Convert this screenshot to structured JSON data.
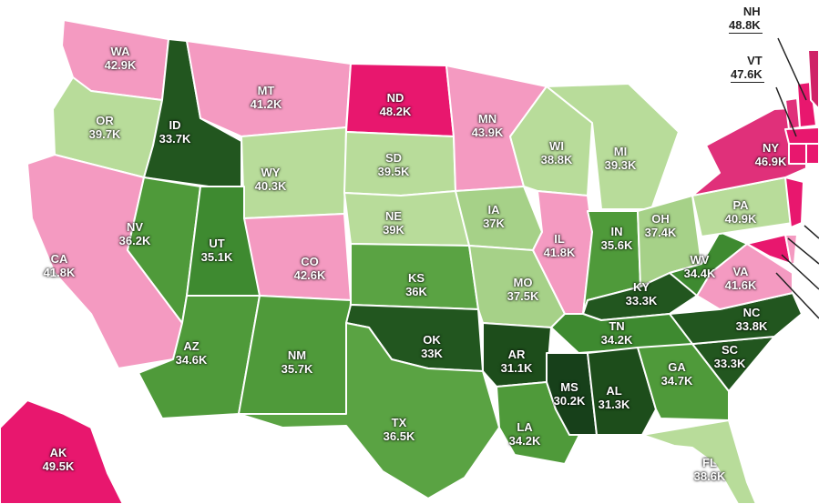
{
  "states": [
    {
      "code": "WA",
      "value": "42.9K",
      "color": "#f49ac1"
    },
    {
      "code": "OR",
      "value": "39.7K",
      "color": "#b8dc9a"
    },
    {
      "code": "CA",
      "value": "41.8K",
      "color": "#f49ac1"
    },
    {
      "code": "ID",
      "value": "33.7K",
      "color": "#22561f"
    },
    {
      "code": "NV",
      "value": "36.2K",
      "color": "#4f9a3a"
    },
    {
      "code": "MT",
      "value": "41.2K",
      "color": "#f49ac1"
    },
    {
      "code": "WY",
      "value": "40.3K",
      "color": "#b8dc9a"
    },
    {
      "code": "UT",
      "value": "35.1K",
      "color": "#3e8a30"
    },
    {
      "code": "AZ",
      "value": "34.6K",
      "color": "#4f9a3a"
    },
    {
      "code": "CO",
      "value": "42.6K",
      "color": "#f49ac1"
    },
    {
      "code": "NM",
      "value": "35.7K",
      "color": "#4f9a3a"
    },
    {
      "code": "ND",
      "value": "48.2K",
      "color": "#e8176e"
    },
    {
      "code": "SD",
      "value": "39.5K",
      "color": "#b8dc9a"
    },
    {
      "code": "NE",
      "value": "39K",
      "color": "#b8dc9a"
    },
    {
      "code": "KS",
      "value": "36K",
      "color": "#5aa343"
    },
    {
      "code": "OK",
      "value": "33K",
      "color": "#22561f"
    },
    {
      "code": "TX",
      "value": "36.5K",
      "color": "#5aa343"
    },
    {
      "code": "MN",
      "value": "43.9K",
      "color": "#f49ac1"
    },
    {
      "code": "IA",
      "value": "37K",
      "color": "#a6d188"
    },
    {
      "code": "MO",
      "value": "37.5K",
      "color": "#a6d188"
    },
    {
      "code": "AR",
      "value": "31.1K",
      "color": "#1d4d1b"
    },
    {
      "code": "LA",
      "value": "34.2K",
      "color": "#4f9a3a"
    },
    {
      "code": "WI",
      "value": "38.8K",
      "color": "#b8dc9a"
    },
    {
      "code": "IL",
      "value": "41.8K",
      "color": "#f49ac1"
    },
    {
      "code": "MI",
      "value": "39.3K",
      "color": "#b8dc9a"
    },
    {
      "code": "IN",
      "value": "35.6K",
      "color": "#4f9a3a"
    },
    {
      "code": "OH",
      "value": "37.4K",
      "color": "#a6d188"
    },
    {
      "code": "KY",
      "value": "33.3K",
      "color": "#22561f"
    },
    {
      "code": "TN",
      "value": "34.2K",
      "color": "#3e8a30"
    },
    {
      "code": "MS",
      "value": "30.2K",
      "color": "#17401a"
    },
    {
      "code": "AL",
      "value": "31.3K",
      "color": "#1d4d1b"
    },
    {
      "code": "GA",
      "value": "34.7K",
      "color": "#4f9a3a"
    },
    {
      "code": "FL",
      "value": "38.6K",
      "color": "#b8dc9a"
    },
    {
      "code": "SC",
      "value": "33.3K",
      "color": "#22561f"
    },
    {
      "code": "NC",
      "value": "33.8K",
      "color": "#22561f"
    },
    {
      "code": "VA",
      "value": "41.6K",
      "color": "#f49ac1"
    },
    {
      "code": "WV",
      "value": "34.4K",
      "color": "#3e8a30"
    },
    {
      "code": "PA",
      "value": "40.9K",
      "color": "#b8dc9a"
    },
    {
      "code": "NY",
      "value": "46.9K",
      "color": "#e0307a"
    },
    {
      "code": "AK",
      "value": "49.5K",
      "color": "#e8176e"
    }
  ],
  "callouts": [
    {
      "code": "NH",
      "value": "48.8K"
    },
    {
      "code": "VT",
      "value": "47.6K"
    }
  ],
  "extra_colors": {
    "VT": "#e0307a",
    "NH": "#e8176e",
    "MA": "#e8176e",
    "CT": "#e8176e",
    "RI": "#e8176e",
    "NJ": "#e8176e",
    "DE": "#f49ac1",
    "MD": "#e8176e",
    "ME": "#cf2367"
  }
}
